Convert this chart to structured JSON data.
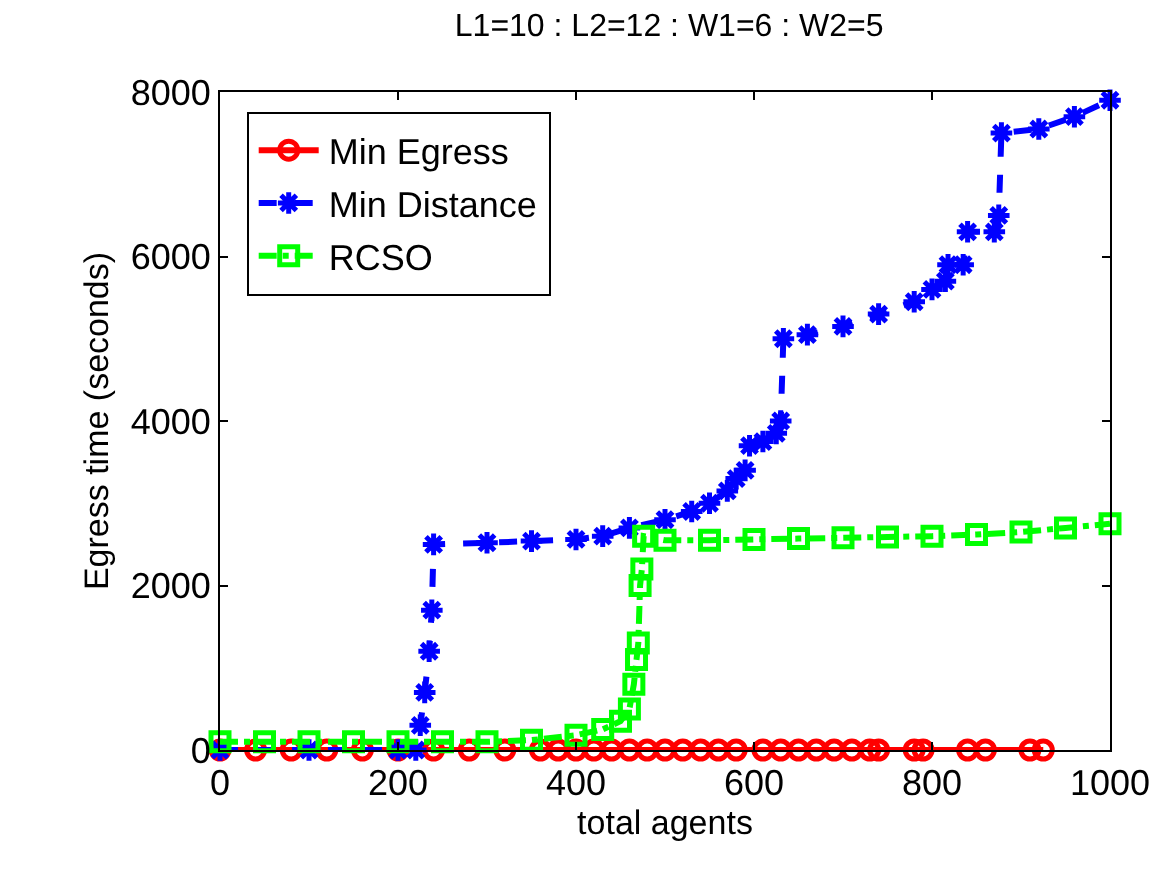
{
  "chart_data": {
    "type": "line",
    "title": "L1=10 : L2=12 : W1=6 : W2=5",
    "xlabel": "total agents",
    "ylabel": "Egress time (seconds)",
    "xlim": [
      0,
      1000
    ],
    "xticks": [
      0,
      200,
      400,
      600,
      800,
      1000
    ],
    "ylim": [
      0,
      8000
    ],
    "yticks": [
      0,
      2000,
      4000,
      6000,
      8000
    ],
    "legend": "top left",
    "series": [
      {
        "name": "Min Egress",
        "color": "#ff0000",
        "marker": "circle",
        "line_style": "solid",
        "x": [
          0,
          40,
          80,
          120,
          160,
          200,
          240,
          280,
          320,
          360,
          380,
          400,
          420,
          440,
          460,
          480,
          500,
          520,
          540,
          560,
          580,
          610,
          630,
          650,
          670,
          690,
          710,
          730,
          740,
          780,
          790,
          840,
          860,
          910,
          925
        ],
        "values": [
          0,
          0,
          0,
          0,
          0,
          0,
          0,
          0,
          0,
          0,
          0,
          0,
          0,
          0,
          0,
          0,
          0,
          0,
          0,
          0,
          0,
          0,
          0,
          0,
          0,
          0,
          0,
          0,
          0,
          0,
          0,
          0,
          0,
          0,
          0
        ]
      },
      {
        "name": "Min Distance",
        "color": "#0000ff",
        "marker": "cross",
        "line_style": "dashed",
        "x": [
          0,
          100,
          200,
          220,
          225,
          230,
          235,
          238,
          240,
          300,
          350,
          400,
          430,
          460,
          500,
          530,
          550,
          570,
          580,
          590,
          595,
          610,
          625,
          630,
          633,
          660,
          700,
          740,
          780,
          800,
          815,
          818,
          835,
          840,
          870,
          875,
          878,
          920,
          960,
          1000
        ],
        "values": [
          0,
          0,
          0,
          0,
          300,
          700,
          1200,
          1700,
          2500,
          2520,
          2540,
          2560,
          2600,
          2700,
          2800,
          2900,
          3000,
          3150,
          3300,
          3400,
          3700,
          3750,
          3850,
          4000,
          5000,
          5050,
          5150,
          5300,
          5450,
          5600,
          5700,
          5900,
          5900,
          6300,
          6300,
          6500,
          7500,
          7550,
          7700,
          7900
        ]
      },
      {
        "name": "RCSO",
        "color": "#00ff00",
        "marker": "square",
        "line_style": "dashdot",
        "x": [
          0,
          50,
          100,
          150,
          200,
          250,
          300,
          350,
          400,
          430,
          450,
          460,
          465,
          468,
          470,
          472,
          474,
          476,
          500,
          550,
          600,
          650,
          700,
          750,
          800,
          850,
          900,
          950,
          1000
        ],
        "values": [
          100,
          100,
          100,
          100,
          100,
          100,
          100,
          120,
          180,
          250,
          350,
          500,
          800,
          1100,
          1300,
          2000,
          2200,
          2600,
          2550,
          2550,
          2560,
          2570,
          2580,
          2590,
          2600,
          2620,
          2650,
          2700,
          2750
        ]
      }
    ]
  }
}
